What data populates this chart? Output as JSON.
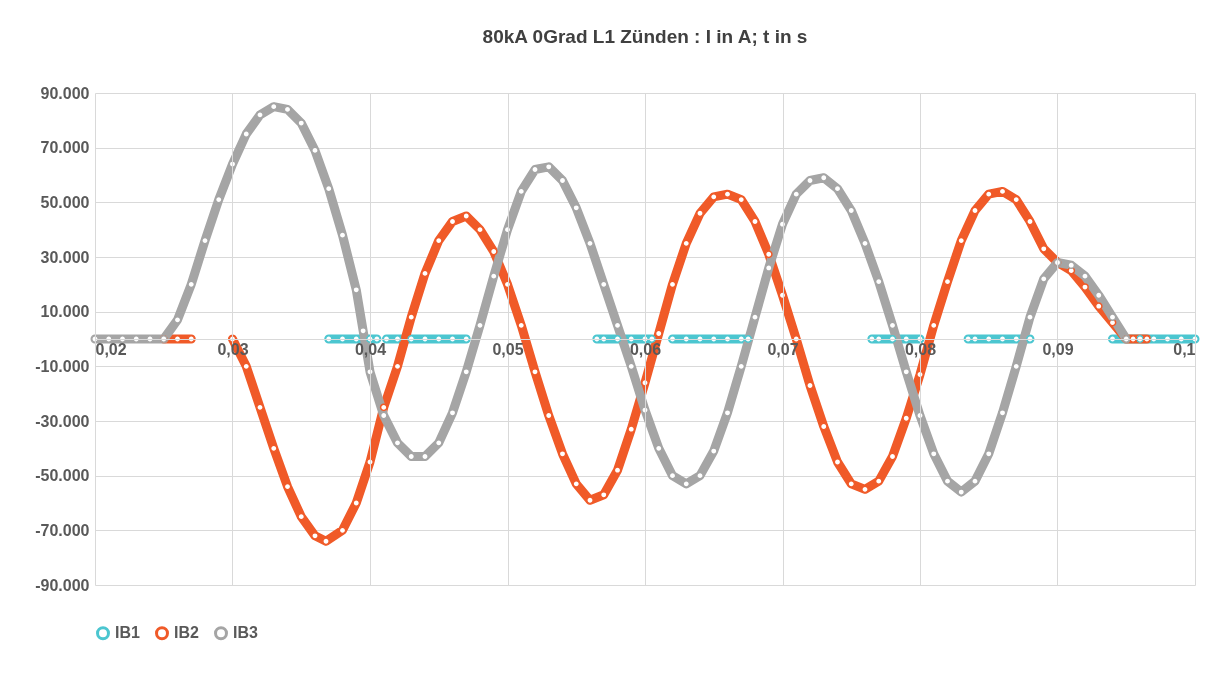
{
  "chart_data": {
    "type": "line",
    "title": "80kA 0Grad L1 Zünden : I in A; t in s",
    "marker": "circle",
    "line_style": "solid",
    "grid": true,
    "legend": "bottom",
    "xlim": [
      0.02,
      0.1
    ],
    "xticks": [
      {
        "value": 0.02,
        "label": "0,02"
      },
      {
        "value": 0.03,
        "label": "0,03"
      },
      {
        "value": 0.04,
        "label": "0,04"
      },
      {
        "value": 0.05,
        "label": "0,05"
      },
      {
        "value": 0.06,
        "label": "0,06"
      },
      {
        "value": 0.07,
        "label": "0,07"
      },
      {
        "value": 0.08,
        "label": "0,08"
      },
      {
        "value": 0.09,
        "label": "0,09"
      },
      {
        "value": 0.1,
        "label": "0,1"
      }
    ],
    "ylim": [
      -90000,
      90000
    ],
    "yticks": [
      {
        "value": -90000,
        "label": "-90.000"
      },
      {
        "value": -70000,
        "label": "-70.000"
      },
      {
        "value": -50000,
        "label": "-50.000"
      },
      {
        "value": -30000,
        "label": "-30.000"
      },
      {
        "value": -10000,
        "label": "-10.000"
      },
      {
        "value": 10000,
        "label": "10.000"
      },
      {
        "value": 30000,
        "label": "30.000"
      },
      {
        "value": 50000,
        "label": "50.000"
      },
      {
        "value": 70000,
        "label": "70.000"
      },
      {
        "value": 90000,
        "label": "90.000"
      }
    ],
    "series": [
      {
        "name": "IB1",
        "color": "#4bc6d0",
        "x": [
          0.037,
          0.038,
          0.039,
          0.04,
          0.0405,
          0.0408,
          0.0412,
          0.042,
          0.043,
          0.044,
          0.045,
          0.046,
          0.047,
          0.052,
          0.0565,
          0.057,
          0.058,
          0.059,
          0.06,
          0.0605,
          0.0612,
          0.062,
          0.063,
          0.064,
          0.065,
          0.066,
          0.067,
          0.0675,
          0.072,
          0.0765,
          0.077,
          0.078,
          0.079,
          0.08,
          0.082,
          0.0835,
          0.084,
          0.085,
          0.086,
          0.087,
          0.088,
          0.091,
          0.094,
          0.095,
          0.096,
          0.097,
          0.098,
          0.099,
          0.1
        ],
        "values": [
          0,
          0,
          0,
          0,
          0,
          null,
          0,
          0,
          0,
          0,
          0,
          0,
          0,
          null,
          0,
          0,
          0,
          0,
          0,
          0,
          null,
          0,
          0,
          0,
          0,
          0,
          0,
          0,
          null,
          0,
          0,
          0,
          0,
          0,
          null,
          0,
          0,
          0,
          0,
          0,
          0,
          null,
          0,
          0,
          0,
          0,
          0,
          0,
          0
        ]
      },
      {
        "name": "IB2",
        "color": "#f05a28",
        "x": [
          0.025,
          0.026,
          0.027,
          0.0285,
          0.03,
          0.031,
          0.032,
          0.033,
          0.034,
          0.035,
          0.036,
          0.0368,
          0.038,
          0.039,
          0.04,
          0.041,
          0.042,
          0.043,
          0.044,
          0.045,
          0.046,
          0.047,
          0.048,
          0.049,
          0.05,
          0.051,
          0.052,
          0.053,
          0.054,
          0.055,
          0.056,
          0.057,
          0.058,
          0.059,
          0.06,
          0.061,
          0.062,
          0.063,
          0.064,
          0.065,
          0.066,
          0.067,
          0.068,
          0.069,
          0.07,
          0.071,
          0.072,
          0.073,
          0.074,
          0.075,
          0.076,
          0.077,
          0.078,
          0.079,
          0.08,
          0.081,
          0.082,
          0.083,
          0.084,
          0.085,
          0.086,
          0.087,
          0.088,
          0.089,
          0.09,
          0.091,
          0.092,
          0.093,
          0.094,
          0.095,
          0.0955,
          0.0965
        ],
        "values": [
          0,
          0,
          0,
          null,
          0,
          -10000,
          -25000,
          -40000,
          -54000,
          -65000,
          -72000,
          -74000,
          -70000,
          -60000,
          -45000,
          -25000,
          -10000,
          8000,
          24000,
          36000,
          43000,
          45000,
          40000,
          32000,
          20000,
          5000,
          -12000,
          -28000,
          -42000,
          -53000,
          -59000,
          -57000,
          -48000,
          -33000,
          -16000,
          2000,
          20000,
          35000,
          46000,
          52000,
          53000,
          51000,
          43000,
          31000,
          16000,
          0,
          -17000,
          -32000,
          -45000,
          -53000,
          -55000,
          -52000,
          -43000,
          -29000,
          -13000,
          5000,
          21000,
          36000,
          47000,
          53000,
          54000,
          51000,
          43000,
          33000,
          28000,
          25000,
          19000,
          12000,
          6000,
          0,
          0,
          0
        ]
      },
      {
        "name": "IB3",
        "color": "#a5a5a5",
        "x": [
          0.02,
          0.021,
          0.022,
          0.023,
          0.024,
          0.025,
          0.026,
          0.027,
          0.028,
          0.029,
          0.03,
          0.031,
          0.032,
          0.033,
          0.034,
          0.035,
          0.036,
          0.037,
          0.038,
          0.039,
          0.0395,
          0.04,
          0.041,
          0.042,
          0.043,
          0.044,
          0.045,
          0.046,
          0.047,
          0.048,
          0.049,
          0.05,
          0.051,
          0.052,
          0.053,
          0.054,
          0.055,
          0.056,
          0.057,
          0.058,
          0.059,
          0.06,
          0.061,
          0.062,
          0.063,
          0.064,
          0.065,
          0.066,
          0.067,
          0.068,
          0.069,
          0.07,
          0.071,
          0.072,
          0.073,
          0.074,
          0.075,
          0.076,
          0.077,
          0.078,
          0.079,
          0.08,
          0.081,
          0.082,
          0.083,
          0.084,
          0.085,
          0.086,
          0.087,
          0.088,
          0.089,
          0.09,
          0.091,
          0.092,
          0.093,
          0.094,
          0.095
        ],
        "values": [
          0,
          0,
          0,
          0,
          0,
          0,
          7000,
          20000,
          36000,
          51000,
          64000,
          75000,
          82000,
          85000,
          84000,
          79000,
          69000,
          55000,
          38000,
          18000,
          3000,
          -12000,
          -28000,
          -38000,
          -43000,
          -43000,
          -38000,
          -27000,
          -12000,
          5000,
          23000,
          40000,
          54000,
          62000,
          63000,
          58000,
          48000,
          35000,
          20000,
          5000,
          -10000,
          -26000,
          -40000,
          -50000,
          -53000,
          -50000,
          -41000,
          -27000,
          -10000,
          8000,
          26000,
          42000,
          53000,
          58000,
          59000,
          55000,
          47000,
          35000,
          21000,
          5000,
          -12000,
          -28000,
          -42000,
          -52000,
          -56000,
          -52000,
          -42000,
          -27000,
          -10000,
          8000,
          22000,
          28000,
          27000,
          23000,
          16000,
          8000,
          0
        ]
      }
    ]
  }
}
